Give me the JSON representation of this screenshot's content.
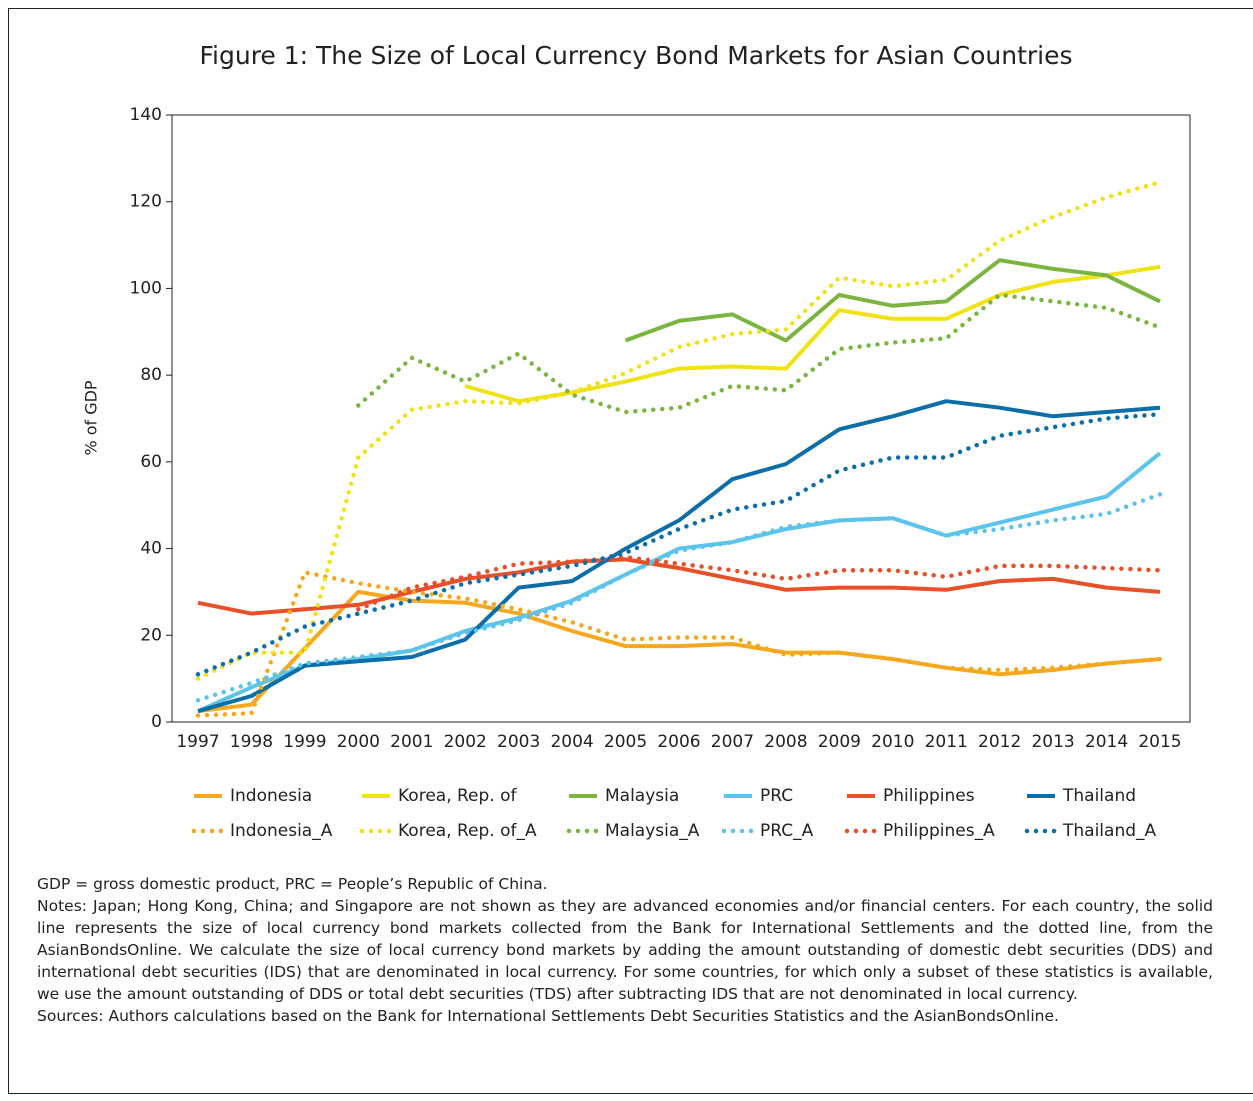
{
  "chart_data": {
    "type": "line",
    "title": "Figure 1: The Size of Local Currency Bond Markets for Asian Countries",
    "y_label": "% of GDP",
    "categories": [
      "1997",
      "1998",
      "1999",
      "2000",
      "2001",
      "2002",
      "2003",
      "2004",
      "2005",
      "2006",
      "2007",
      "2008",
      "2009",
      "2010",
      "2011",
      "2012",
      "2013",
      "2014",
      "2015"
    ],
    "ylim": [
      0,
      140
    ],
    "yticks": [
      0,
      20,
      40,
      60,
      80,
      100,
      120,
      140
    ],
    "series": [
      {
        "name": "Indonesia",
        "color": "#f5a81f",
        "style": "solid",
        "values": [
          2.5,
          4,
          17,
          30,
          28,
          27.5,
          25,
          21,
          17.5,
          17.5,
          18,
          16,
          16,
          14.5,
          12.5,
          11,
          12,
          13.5,
          14.5
        ]
      },
      {
        "name": "Korea, Rep. of",
        "color": "#f0e214",
        "style": "solid",
        "values": [
          null,
          null,
          null,
          null,
          null,
          77.5,
          74,
          76,
          78.5,
          81.5,
          82,
          81.5,
          95,
          93,
          93,
          98.5,
          101.5,
          103,
          105
        ]
      },
      {
        "name": "Malaysia",
        "color": "#7bb540",
        "style": "solid",
        "values": [
          null,
          null,
          null,
          null,
          null,
          null,
          null,
          null,
          88,
          92.5,
          94,
          88,
          98.5,
          96,
          97,
          106.5,
          104.5,
          103,
          97
        ]
      },
      {
        "name": "PRC",
        "color": "#5cc4ea",
        "style": "solid",
        "values": [
          2.5,
          8,
          13,
          14.5,
          16.5,
          21,
          24,
          28,
          34,
          40,
          41.5,
          44.5,
          46.5,
          47,
          43,
          46,
          49,
          52,
          62
        ]
      },
      {
        "name": "Philippines",
        "color": "#e8502a",
        "style": "solid",
        "values": [
          27.5,
          25,
          26,
          27,
          30,
          33,
          34.5,
          37,
          37.5,
          35.5,
          33,
          30.5,
          31,
          31,
          30.5,
          32.5,
          33,
          31,
          30
        ]
      },
      {
        "name": "Thailand",
        "color": "#0b6ea8",
        "style": "solid",
        "values": [
          2.5,
          6,
          13,
          14,
          15,
          19,
          31,
          32.5,
          40,
          46.5,
          56,
          59.5,
          67.5,
          70.5,
          74,
          72.5,
          70.5,
          71.5,
          72.5
        ]
      },
      {
        "name": "Indonesia_A",
        "color": "#f5a81f",
        "style": "dotted",
        "values": [
          1.5,
          2,
          34.5,
          32,
          30,
          28.5,
          26,
          23,
          19,
          19.5,
          19.5,
          15.5,
          16,
          14.5,
          12.5,
          12,
          12.5,
          13.5,
          14.5
        ]
      },
      {
        "name": "Korea, Rep. of_A",
        "color": "#f0e214",
        "style": "dotted",
        "values": [
          10,
          16,
          16,
          61,
          72,
          74,
          73.5,
          76,
          80.5,
          86.5,
          89.5,
          90.5,
          102.5,
          100.5,
          102,
          111,
          116.5,
          121,
          124.5
        ]
      },
      {
        "name": "Malaysia_A",
        "color": "#7bb540",
        "style": "dotted",
        "values": [
          null,
          null,
          null,
          73,
          84,
          78.5,
          85,
          75.5,
          71.5,
          72.5,
          77.5,
          76.5,
          86,
          87.5,
          88.5,
          98.5,
          97,
          95.5,
          91
        ]
      },
      {
        "name": "PRC_A",
        "color": "#5cc4ea",
        "style": "dotted",
        "values": [
          5,
          9,
          13.5,
          15,
          16.5,
          20.5,
          23.5,
          27.5,
          34,
          39.5,
          41.5,
          45,
          46.5,
          47,
          43,
          44.5,
          46.5,
          48,
          52.5
        ]
      },
      {
        "name": "Philippines_A",
        "color": "#e8502a",
        "style": "dotted",
        "values": [
          null,
          null,
          null,
          26,
          31,
          33.5,
          36.5,
          37,
          38,
          36.5,
          35,
          33,
          35,
          35,
          33.5,
          36,
          36,
          35.5,
          35
        ]
      },
      {
        "name": "Thailand_A",
        "color": "#0b6ea8",
        "style": "dotted",
        "values": [
          11,
          16,
          22,
          25,
          28,
          32,
          34,
          36,
          39,
          44.5,
          49,
          51,
          58,
          61,
          61,
          66,
          68,
          70,
          71
        ]
      }
    ]
  },
  "notes": [
    "GDP = gross domestic product, PRC = People’s Republic of China.",
    "Notes: Japan; Hong Kong, China; and Singapore are not shown as they are advanced economies and/or financial centers. For each country, the solid line represents the size of local currency bond markets collected from the Bank for International Settlements and the dotted line, from the AsianBondsOnline. We calculate the size of local currency bond markets by adding the amount outstanding of domestic debt securities (DDS) and international debt securities (IDS) that are denominated in local currency. For some countries, for which only a subset of these statistics is available, we use the amount outstanding of DDS or total debt securities (TDS) after subtracting IDS that are not denominated in local currency.",
    "Sources: Authors calculations based on the Bank for International Settlements Debt Securities Statistics and the AsianBondsOnline."
  ]
}
